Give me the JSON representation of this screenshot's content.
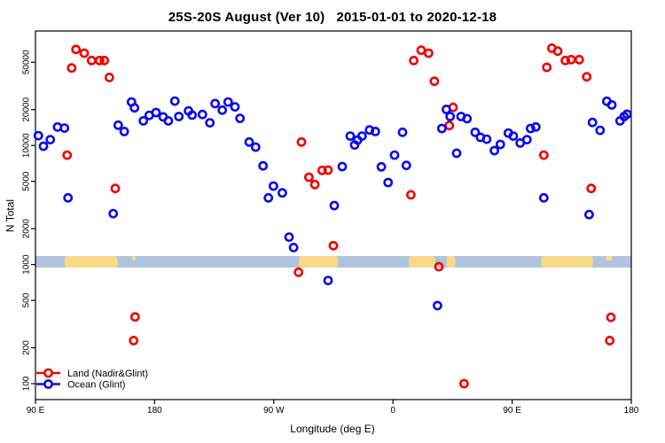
{
  "chart_data": {
    "type": "scatter",
    "title": "25S-20S August (Ver 10)   2015-01-01 to 2020-12-18",
    "xlabel": "Longitude (deg E)",
    "ylabel": "N Total",
    "x_axis_note": "x values are degrees eastward from the left edge; left edge = 90E, axis spans 450 deg (90E > 180 > 90W > 0 > 90E > 180)",
    "x_ticks": {
      "pos_deg": [
        0,
        90,
        180,
        270,
        360,
        450
      ],
      "labels": [
        "90 E",
        "180",
        "90 W",
        "0",
        "90 E",
        "180"
      ]
    },
    "y_scale": "log",
    "y_ticks": [
      100,
      200,
      500,
      1000,
      2000,
      5000,
      10000,
      20000,
      50000
    ],
    "y_range": [
      88,
      78000
    ],
    "grid": "off",
    "legend_position": "bottom-left",
    "series": [
      {
        "name": "Land (Nadir&Glint)",
        "color": "#f40000",
        "points": [
          [
            30.6,
            64000
          ],
          [
            36.8,
            59600
          ],
          [
            42.4,
            51700
          ],
          [
            48.4,
            51700
          ],
          [
            52.0,
            51700
          ],
          [
            27.3,
            44800
          ],
          [
            55.8,
            37300
          ],
          [
            23.9,
            8300
          ],
          [
            60.3,
            4360
          ],
          [
            75.2,
            363
          ],
          [
            74.1,
            230
          ],
          [
            200.9,
            10700
          ],
          [
            206.5,
            5420
          ],
          [
            211.0,
            4700
          ],
          [
            216.5,
            6180
          ],
          [
            221.0,
            6210
          ],
          [
            198.7,
            861
          ],
          [
            225.0,
            1440
          ],
          [
            285.7,
            51700
          ],
          [
            291.3,
            63100
          ],
          [
            296.9,
            59600
          ],
          [
            301.3,
            34600
          ],
          [
            315.4,
            20900
          ],
          [
            312.5,
            14700
          ],
          [
            283.5,
            3850
          ],
          [
            304.7,
            960
          ],
          [
            323.7,
            100
          ],
          [
            390.0,
            65600
          ],
          [
            394.4,
            62000
          ],
          [
            400.2,
            51700
          ],
          [
            404.5,
            52600
          ],
          [
            410.7,
            52600
          ],
          [
            386.2,
            45300
          ],
          [
            416.3,
            37700
          ],
          [
            383.9,
            8300
          ],
          [
            419.7,
            4360
          ],
          [
            434.6,
            360
          ],
          [
            433.7,
            230
          ]
        ]
      },
      {
        "name": "Ocean (Glint)",
        "color": "#0b0bee",
        "points": [
          [
            2.2,
            12100
          ],
          [
            6.0,
            9870
          ],
          [
            11.2,
            11200
          ],
          [
            16.7,
            14300
          ],
          [
            21.9,
            14000
          ],
          [
            24.6,
            3630
          ],
          [
            58.7,
            2680
          ],
          [
            62.5,
            14800
          ],
          [
            67.0,
            13100
          ],
          [
            72.5,
            23200
          ],
          [
            74.8,
            20700
          ],
          [
            81.5,
            16100
          ],
          [
            85.9,
            17900
          ],
          [
            91.1,
            18900
          ],
          [
            96.4,
            17400
          ],
          [
            100.4,
            16100
          ],
          [
            105.3,
            23600
          ],
          [
            108.3,
            17500
          ],
          [
            115.6,
            19500
          ],
          [
            118.3,
            18000
          ],
          [
            126.1,
            18200
          ],
          [
            131.7,
            15500
          ],
          [
            135.7,
            22500
          ],
          [
            141.1,
            19800
          ],
          [
            145.5,
            23200
          ],
          [
            150.7,
            21100
          ],
          [
            154.5,
            16900
          ],
          [
            161.4,
            10700
          ],
          [
            166.3,
            9700
          ],
          [
            171.9,
            6740
          ],
          [
            175.9,
            3630
          ],
          [
            179.7,
            4560
          ],
          [
            186.4,
            4000
          ],
          [
            191.5,
            1700
          ],
          [
            194.9,
            1390
          ],
          [
            221.0,
            735
          ],
          [
            225.7,
            3130
          ],
          [
            231.7,
            6650
          ],
          [
            237.7,
            12000
          ],
          [
            241.1,
            10100
          ],
          [
            243.3,
            11100
          ],
          [
            246.6,
            12000
          ],
          [
            252.3,
            13500
          ],
          [
            256.7,
            13100
          ],
          [
            261.2,
            6620
          ],
          [
            266.3,
            4890
          ],
          [
            271.2,
            8300
          ],
          [
            277.2,
            12900
          ],
          [
            280.1,
            6800
          ],
          [
            303.6,
            452
          ],
          [
            306.9,
            13900
          ],
          [
            310.3,
            20100
          ],
          [
            313.2,
            17500
          ],
          [
            318.1,
            8620
          ],
          [
            321.4,
            17500
          ],
          [
            325.9,
            16800
          ],
          [
            332.1,
            12900
          ],
          [
            336.1,
            11700
          ],
          [
            340.8,
            11300
          ],
          [
            346.6,
            9060
          ],
          [
            351.1,
            10200
          ],
          [
            357.1,
            12700
          ],
          [
            360.9,
            12000
          ],
          [
            366.1,
            10500
          ],
          [
            371.2,
            11200
          ],
          [
            373.9,
            13900
          ],
          [
            377.9,
            14300
          ],
          [
            383.9,
            3630
          ],
          [
            418.1,
            2630
          ],
          [
            420.7,
            15600
          ],
          [
            426.4,
            13400
          ],
          [
            431.5,
            23500
          ],
          [
            435.3,
            21900
          ],
          [
            441.5,
            16100
          ],
          [
            444.6,
            17500
          ],
          [
            446.8,
            18300
          ]
        ]
      }
    ],
    "map_band": {
      "description": "land/ocean strip drawn across the plot at N = 1000 showing the 25S-20S latitude band",
      "center_value": 1000,
      "ocean_color": "#b0c4de",
      "land_color": "#f7d988",
      "land_segments_deg": [
        [
          22,
          62
        ],
        [
          199,
          228.5
        ],
        [
          282,
          302
        ],
        [
          310.5,
          317
        ],
        [
          382,
          421
        ]
      ],
      "island_specks_deg": [
        [
          73,
          75.5
        ],
        [
          431,
          435.5
        ]
      ]
    }
  }
}
